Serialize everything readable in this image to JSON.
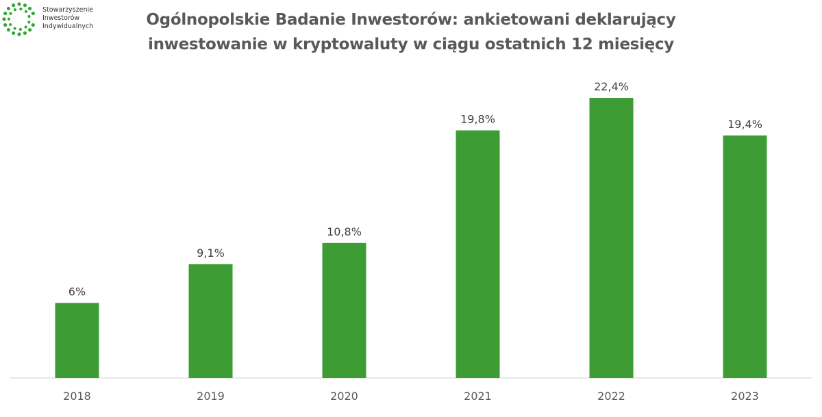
{
  "logo": {
    "lines": [
      "Stowarzyszenie",
      "Inwestorów",
      "Indywidualnych"
    ],
    "color": "#2fa832"
  },
  "chart_data": {
    "type": "bar",
    "title": [
      "Ogólnopolskie Badanie Inwestorów: ankietowani deklarujący",
      "inwestowanie w kryptowaluty w ciągu ostatnich 12 miesięcy"
    ],
    "categories": [
      "2018",
      "2019",
      "2020",
      "2021",
      "2022",
      "2023"
    ],
    "values": [
      6,
      9.1,
      10.8,
      19.8,
      22.4,
      19.4
    ],
    "data_labels": [
      "6%",
      "9,1%",
      "10,8%",
      "19,8%",
      "22,4%",
      "19,4%"
    ],
    "unit": "%",
    "ylim": [
      0,
      22.4
    ],
    "grid": false,
    "bar_color": "#3e9c35"
  }
}
